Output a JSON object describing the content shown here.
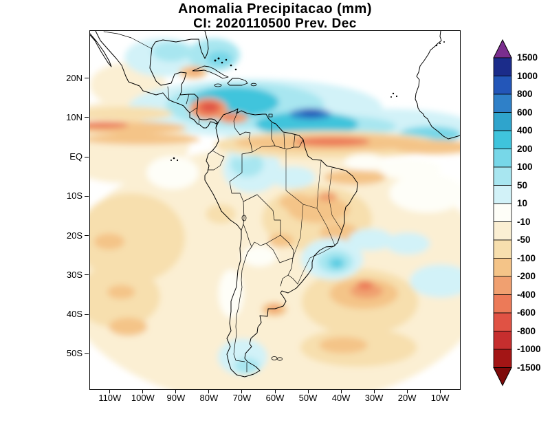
{
  "title": {
    "line1": "Anomalia Precipitacao (mm)",
    "line2": "CI: 2020110500 Prev. Dec"
  },
  "axes": {
    "lat_ticks": [
      {
        "label": "20N",
        "deg": 20
      },
      {
        "label": "10N",
        "deg": 10
      },
      {
        "label": "EQ",
        "deg": 0
      },
      {
        "label": "10S",
        "deg": -10
      },
      {
        "label": "20S",
        "deg": -20
      },
      {
        "label": "30S",
        "deg": -30
      },
      {
        "label": "40S",
        "deg": -40
      },
      {
        "label": "50S",
        "deg": -50
      }
    ],
    "lon_ticks": [
      {
        "label": "110W",
        "deg": -110
      },
      {
        "label": "100W",
        "deg": -100
      },
      {
        "label": "90W",
        "deg": -90
      },
      {
        "label": "80W",
        "deg": -80
      },
      {
        "label": "70W",
        "deg": -70
      },
      {
        "label": "60W",
        "deg": -60
      },
      {
        "label": "50W",
        "deg": -50
      },
      {
        "label": "40W",
        "deg": -40
      },
      {
        "label": "30W",
        "deg": -30
      },
      {
        "label": "20W",
        "deg": -20
      },
      {
        "label": "10W",
        "deg": -10
      }
    ]
  },
  "chart_data": {
    "type": "heatmap",
    "title": "Anomalia Precipitacao (mm)",
    "subtitle": "CI: 2020110500 Prev. Dec",
    "units": "mm",
    "map_extent": {
      "lon": [
        -116,
        -4
      ],
      "lat": [
        -59,
        32
      ]
    },
    "colorbar": {
      "levels": [
        1500,
        1000,
        800,
        600,
        400,
        200,
        100,
        50,
        10,
        -10,
        -50,
        -100,
        -200,
        -400,
        -600,
        -800,
        -1000,
        -1500
      ],
      "colors": [
        "#7A2E8E",
        "#1B2C8A",
        "#2356B8",
        "#2F80C8",
        "#2FA4CC",
        "#3FC4DC",
        "#77D7E8",
        "#A8E6F0",
        "#D2F2F8",
        "#FEFEF8",
        "#FBEFD3",
        "#F7DFAE",
        "#F4C488",
        "#F0A070",
        "#EC7A58",
        "#E05244",
        "#C62E2E",
        "#A31515",
        "#7E0A0A"
      ]
    },
    "features": [
      {
        "region": "Caribbean and tropical North Atlantic",
        "sign": "positive",
        "approx_mm": "+50 to +900"
      },
      {
        "region": "Band just north of Equator across northern South America and adjacent Atlantic",
        "sign": "negative",
        "approx_mm": "-100 to -500"
      },
      {
        "region": "Panama / SW Caribbean spot",
        "sign": "negative",
        "approx_mm": "-300 to -700"
      },
      {
        "region": "Eastern tropical Pacific bands 5N-10N",
        "sign": "negative",
        "approx_mm": "-100 to -450"
      },
      {
        "region": "Western Amazon",
        "sign": "positive",
        "approx_mm": "+10 to +100"
      },
      {
        "region": "Central and eastern Brazil",
        "sign": "negative",
        "approx_mm": "-50 to -300"
      },
      {
        "region": "Southeast Brazil coast",
        "sign": "positive",
        "approx_mm": "+10 to +300"
      },
      {
        "region": "Southwest Atlantic off Uruguay/Argentina",
        "sign": "negative",
        "approx_mm": "-75 to -450"
      },
      {
        "region": "Subtropical South America and SE Pacific background",
        "sign": "negative",
        "approx_mm": "-10 to -100"
      },
      {
        "region": "Southern Chile / Tierra del Fuego",
        "sign": "positive",
        "approx_mm": "+10 to +100"
      }
    ],
    "field": [
      {
        "lon": -60.0,
        "lat": -30.3,
        "rlon": 64.6,
        "rlat": 33.3,
        "v": -30
      },
      {
        "lon": -106.6,
        "lat": 3.9,
        "rlon": 20.8,
        "rlat": 10.5,
        "v": -30
      },
      {
        "lon": -104.5,
        "lat": 18.3,
        "rlon": 11.5,
        "rlat": 5.6,
        "v": -30
      },
      {
        "lon": -103.5,
        "lat": -20.6,
        "rlon": 16.3,
        "rlat": 11.4,
        "v": -75
      },
      {
        "lon": -107.7,
        "lat": -35.5,
        "rlon": 12.9,
        "rlat": 7.9,
        "v": -75
      },
      {
        "lon": -106.6,
        "lat": -34.3,
        "rlon": 4.2,
        "rlat": 1.8,
        "v": -150
      },
      {
        "lon": -110.2,
        "lat": -21.5,
        "rlon": 4.6,
        "rlat": 2.1,
        "v": -150
      },
      {
        "lon": -104.5,
        "lat": -43.1,
        "rlon": 5.8,
        "rlat": 2.3,
        "v": -150
      },
      {
        "lon": -76.4,
        "lat": -14.5,
        "rlon": 4.6,
        "rlat": 2.5,
        "v": -75
      },
      {
        "lon": -47.3,
        "lat": -15.7,
        "rlon": 16.7,
        "rlat": 8.4,
        "v": -75
      },
      {
        "lon": -46.8,
        "lat": -13.3,
        "rlon": 9.4,
        "rlat": 3.5,
        "v": -150
      },
      {
        "lon": -53.5,
        "lat": -11.5,
        "rlon": 5.2,
        "rlat": 2.1,
        "v": -150
      },
      {
        "lon": -40.6,
        "lat": -19.2,
        "rlon": 5.8,
        "rlat": 2.5,
        "v": -150
      },
      {
        "lon": -35.8,
        "lat": -5.2,
        "rlon": 9.4,
        "rlat": 1.9,
        "v": -150
      },
      {
        "lon": -44.1,
        "lat": -10.1,
        "rlon": 2.9,
        "rlat": 1.2,
        "v": -300
      },
      {
        "lon": -58.1,
        "lat": -21.2,
        "rlon": 3.8,
        "rlat": 1.8,
        "v": -150
      },
      {
        "lon": -34.3,
        "lat": -36.8,
        "rlon": 17.7,
        "rlat": 8.4,
        "v": -75
      },
      {
        "lon": -33.1,
        "lat": -34.7,
        "rlon": 10.4,
        "rlat": 3.9,
        "v": -150
      },
      {
        "lon": -32.3,
        "lat": -34.0,
        "rlon": 5.0,
        "rlat": 1.9,
        "v": -300
      },
      {
        "lon": -32.7,
        "lat": -32.6,
        "rlon": 2.5,
        "rlat": 1.1,
        "v": -450
      },
      {
        "lon": -60.2,
        "lat": -38.7,
        "rlon": 3.8,
        "rlat": 1.8,
        "v": -150
      },
      {
        "lon": -60.2,
        "lat": -38.5,
        "rlon": 1.7,
        "rlat": 0.9,
        "v": -300
      },
      {
        "lon": -34.7,
        "lat": -48.4,
        "rlon": 17.7,
        "rlat": 4.9,
        "v": -75
      },
      {
        "lon": -39.3,
        "lat": -47.8,
        "rlon": 7.3,
        "rlat": 2.1,
        "v": -150
      },
      {
        "lon": -64.8,
        "lat": -25.2,
        "rlon": 5.2,
        "rlat": 2.6,
        "v": 0
      },
      {
        "lon": -73.3,
        "lat": -34.7,
        "rlon": 3.8,
        "rlat": 6.1,
        "v": 0
      },
      {
        "lon": -91.0,
        "lat": -4.0,
        "rlon": 7.9,
        "rlat": 4.2,
        "v": 0
      },
      {
        "lon": -66.0,
        "lat": 12.4,
        "rlon": 38.5,
        "rlat": 7.4,
        "v": 30
      },
      {
        "lon": -25.4,
        "lat": 8.3,
        "rlon": 24.0,
        "rlat": 3.9,
        "v": 30
      },
      {
        "lon": -69.1,
        "lat": 13.1,
        "rlon": 24.0,
        "rlat": 5.8,
        "v": 75
      },
      {
        "lon": -43.1,
        "lat": 7.8,
        "rlon": 19.8,
        "rlat": 2.8,
        "v": 75
      },
      {
        "lon": -72.3,
        "lat": 13.9,
        "rlon": 13.5,
        "rlat": 3.9,
        "v": 300
      },
      {
        "lon": -50.4,
        "lat": 8.3,
        "rlon": 15.6,
        "rlat": 3.2,
        "v": 300
      },
      {
        "lon": -49.3,
        "lat": 10.9,
        "rlon": 6.3,
        "rlat": 1.4,
        "v": 700
      },
      {
        "lon": -48.9,
        "lat": 11.3,
        "rlon": 3.3,
        "rlat": 0.9,
        "v": 900
      },
      {
        "lon": -12.9,
        "lat": 5.7,
        "rlon": 9.4,
        "rlat": 2.1,
        "v": 150
      },
      {
        "lon": -94.1,
        "lat": 25.3,
        "rlon": 11.5,
        "rlat": 4.9,
        "v": 30
      },
      {
        "lon": -91.4,
        "lat": 26.7,
        "rlon": 5.8,
        "rlat": 2.5,
        "v": 75
      },
      {
        "lon": -78.5,
        "lat": 25.9,
        "rlon": 7.9,
        "rlat": 4.2,
        "v": 75
      },
      {
        "lon": -76.8,
        "lat": 25.0,
        "rlon": 3.8,
        "rlat": 1.9,
        "v": 150
      },
      {
        "lon": -67.0,
        "lat": -3.1,
        "rlon": 8.8,
        "rlat": 6.0,
        "v": 30
      },
      {
        "lon": -68.5,
        "lat": -1.9,
        "rlon": 5.0,
        "rlat": 3.2,
        "v": 75
      },
      {
        "lon": -70.2,
        "lat": 3.1,
        "rlon": 5.2,
        "rlat": 3.5,
        "v": 30
      },
      {
        "lon": -54.5,
        "lat": -5.2,
        "rlon": 6.7,
        "rlat": 2.8,
        "v": 30
      },
      {
        "lon": -42.7,
        "lat": -25.9,
        "rlon": 9.4,
        "rlat": 5.3,
        "v": 30
      },
      {
        "lon": -41.8,
        "lat": -26.6,
        "rlon": 5.4,
        "rlat": 3.0,
        "v": 75
      },
      {
        "lon": -41.4,
        "lat": -26.9,
        "rlon": 2.7,
        "rlat": 1.6,
        "v": 150
      },
      {
        "lon": -41.2,
        "lat": -27.1,
        "rlon": 1.3,
        "rlat": 0.7,
        "v": 300
      },
      {
        "lon": -31.0,
        "lat": -21.0,
        "rlon": 6.7,
        "rlat": 2.8,
        "v": 30
      },
      {
        "lon": -19.8,
        "lat": -22.0,
        "rlon": 6.7,
        "rlat": 2.8,
        "v": 30
      },
      {
        "lon": -9.8,
        "lat": -31.5,
        "rlon": 9.4,
        "rlat": 4.2,
        "v": 30
      },
      {
        "lon": -69.8,
        "lat": -50.8,
        "rlon": 7.5,
        "rlat": 4.6,
        "v": 30
      },
      {
        "lon": -68.5,
        "lat": -53.1,
        "rlon": 3.8,
        "rlat": 2.1,
        "v": 75
      },
      {
        "lon": -105.6,
        "lat": 11.0,
        "rlon": 14.6,
        "rlat": 1.8,
        "v": -75
      },
      {
        "lon": -104.5,
        "lat": 7.4,
        "rlon": 17.7,
        "rlat": 1.6,
        "v": -150
      },
      {
        "lon": -112.3,
        "lat": 8.1,
        "rlon": 7.9,
        "rlat": 0.9,
        "v": -450
      },
      {
        "lon": -100.4,
        "lat": 4.5,
        "rlon": 17.7,
        "rlat": 1.4,
        "v": -150
      },
      {
        "lon": -44.1,
        "lat": 3.1,
        "rlon": 34.4,
        "rlat": 3.5,
        "v": -75
      },
      {
        "lon": -43.1,
        "lat": 3.6,
        "rlon": 29.2,
        "rlat": 2.1,
        "v": -150
      },
      {
        "lon": -42.7,
        "lat": 3.9,
        "rlon": 11.5,
        "rlat": 1.2,
        "v": -450
      },
      {
        "lon": -11.8,
        "lat": 2.5,
        "rlon": 12.5,
        "rlat": 1.8,
        "v": -150
      },
      {
        "lon": -19.1,
        "lat": -3.1,
        "rlon": 9.4,
        "rlat": 2.6,
        "v": 0
      },
      {
        "lon": -13.9,
        "lat": -9.2,
        "rlon": 11.5,
        "rlat": 4.9,
        "v": 0
      },
      {
        "lon": -32.7,
        "lat": -1.3,
        "rlon": 6.3,
        "rlat": 2.1,
        "v": 0
      },
      {
        "lon": -80.2,
        "lat": 12.2,
        "rlon": 5.8,
        "rlat": 2.8,
        "v": -300
      },
      {
        "lon": -80.0,
        "lat": 12.4,
        "rlon": 4.0,
        "rlat": 1.9,
        "v": -450
      },
      {
        "lon": -79.8,
        "lat": 12.7,
        "rlon": 2.7,
        "rlat": 1.2,
        "v": -650
      },
      {
        "lon": -72.7,
        "lat": 9.9,
        "rlon": 4.6,
        "rlat": 1.4,
        "v": -300
      },
      {
        "lon": -73.7,
        "lat": 10.2,
        "rlon": 2.1,
        "rlat": 0.7,
        "v": -450
      },
      {
        "lon": -84.8,
        "lat": 21.5,
        "rlon": 4.2,
        "rlat": 1.6,
        "v": -150
      },
      {
        "lon": -84.3,
        "lat": 21.6,
        "rlon": 1.9,
        "rlat": 0.7,
        "v": -300
      }
    ]
  }
}
